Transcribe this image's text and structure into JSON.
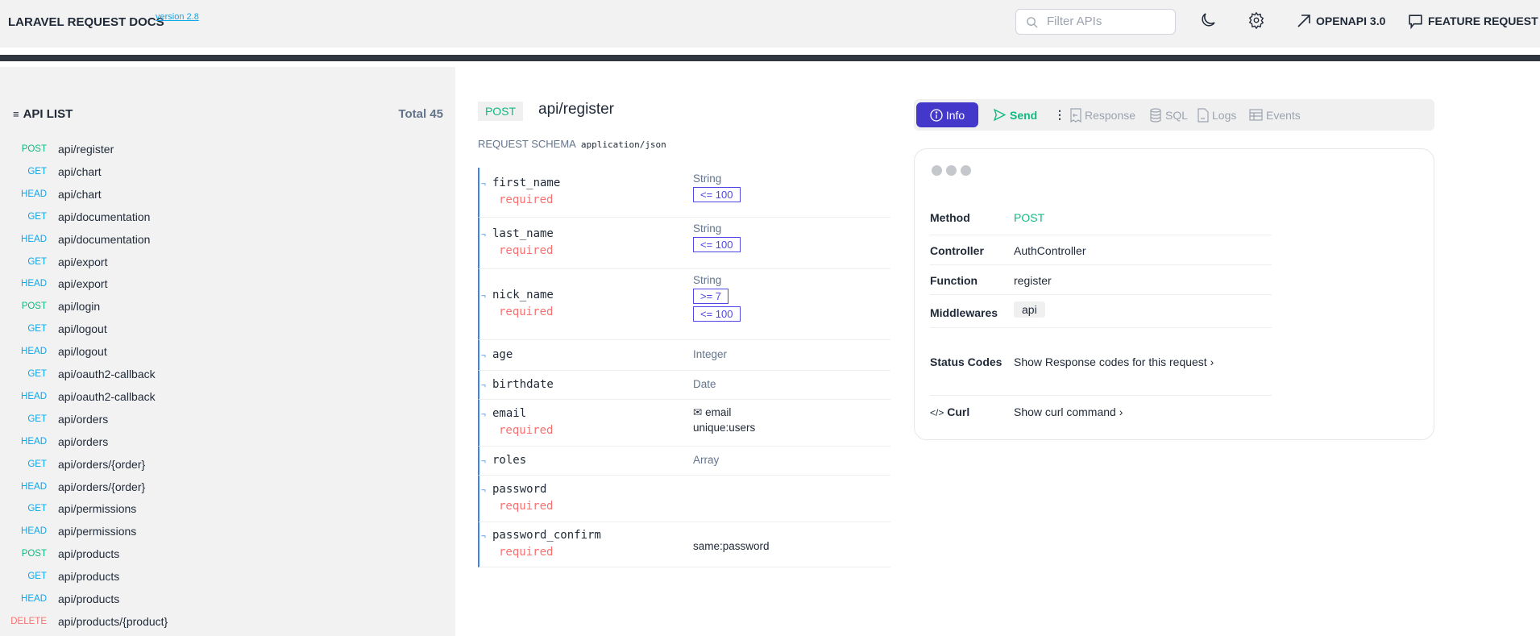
{
  "header": {
    "title": "LARAVEL REQUEST DOCS",
    "version": "version 2.8",
    "filter_placeholder": "Filter APIs",
    "openapi": "OPENAPI 3.0",
    "feature_request": "FEATURE REQUEST"
  },
  "sidebar": {
    "heading": "API LIST",
    "total": "Total 45",
    "items": [
      {
        "method": "POST",
        "path": "api/register"
      },
      {
        "method": "GET",
        "path": "api/chart"
      },
      {
        "method": "HEAD",
        "path": "api/chart"
      },
      {
        "method": "GET",
        "path": "api/documentation"
      },
      {
        "method": "HEAD",
        "path": "api/documentation"
      },
      {
        "method": "GET",
        "path": "api/export"
      },
      {
        "method": "HEAD",
        "path": "api/export"
      },
      {
        "method": "POST",
        "path": "api/login"
      },
      {
        "method": "GET",
        "path": "api/logout"
      },
      {
        "method": "HEAD",
        "path": "api/logout"
      },
      {
        "method": "GET",
        "path": "api/oauth2-callback"
      },
      {
        "method": "HEAD",
        "path": "api/oauth2-callback"
      },
      {
        "method": "GET",
        "path": "api/orders"
      },
      {
        "method": "HEAD",
        "path": "api/orders"
      },
      {
        "method": "GET",
        "path": "api/orders/{order}"
      },
      {
        "method": "HEAD",
        "path": "api/orders/{order}"
      },
      {
        "method": "GET",
        "path": "api/permissions"
      },
      {
        "method": "HEAD",
        "path": "api/permissions"
      },
      {
        "method": "POST",
        "path": "api/products"
      },
      {
        "method": "GET",
        "path": "api/products"
      },
      {
        "method": "HEAD",
        "path": "api/products"
      },
      {
        "method": "DELETE",
        "path": "api/products/{product}"
      }
    ]
  },
  "method_colors": {
    "POST": "#10b981",
    "GET": "#0ea5e9",
    "HEAD": "#0ea5e9",
    "DELETE": "#f87171"
  },
  "main": {
    "method": "POST",
    "path": "api/register",
    "schema_label": "REQUEST SCHEMA",
    "content_type": "application/json",
    "fields": [
      {
        "name": "first_name",
        "required": "required",
        "type": "String",
        "rules": [
          "<= 100"
        ]
      },
      {
        "name": "last_name",
        "required": "required",
        "type": "String",
        "rules": [
          "<= 100"
        ]
      },
      {
        "name": "nick_name",
        "required": "required",
        "type": "String",
        "rules": [
          ">= 7",
          "<= 100"
        ]
      },
      {
        "name": "age",
        "type": "Integer"
      },
      {
        "name": "birthdate",
        "type": "Date"
      },
      {
        "name": "email",
        "required": "required",
        "email": "email",
        "extra": "unique:users"
      },
      {
        "name": "roles",
        "type": "Array"
      },
      {
        "name": "password",
        "required": "required"
      },
      {
        "name": "password_confirm",
        "required": "required",
        "extra": "same:password"
      }
    ]
  },
  "tabs": {
    "info": "Info",
    "send": "Send",
    "response": "Response",
    "sql": "SQL",
    "logs": "Logs",
    "events": "Events"
  },
  "info": {
    "method_label": "Method",
    "method": "POST",
    "controller_label": "Controller",
    "controller": "AuthController",
    "function_label": "Function",
    "function": "register",
    "middlewares_label": "Middlewares",
    "middleware": "api",
    "status_label": "Status Codes",
    "status_link": "Show Response codes for this request",
    "curl_label": "Curl",
    "curl_link": "Show curl command"
  }
}
